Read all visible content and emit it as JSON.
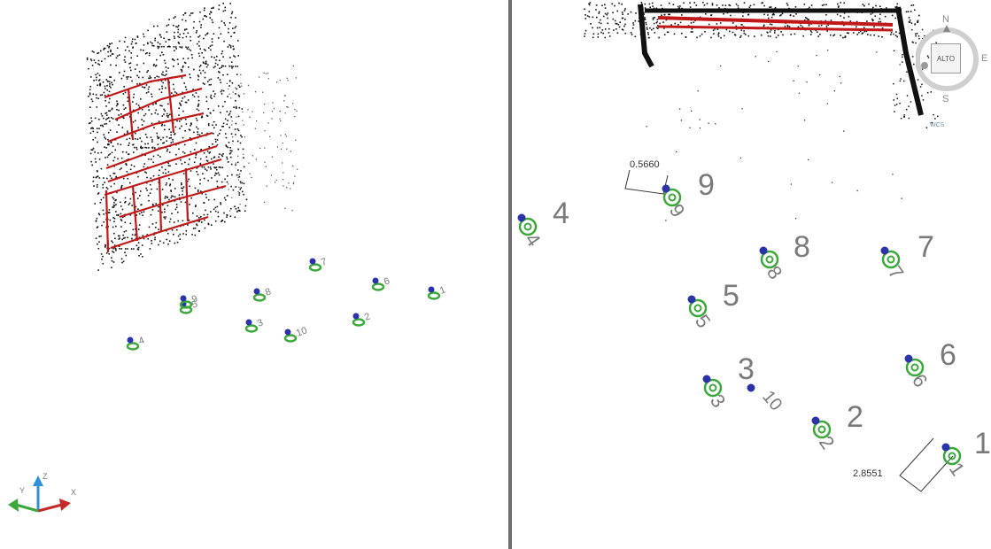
{
  "left_viewport": {
    "target_labels": [
      "1",
      "2",
      "3",
      "4",
      "5",
      "6",
      "7",
      "8",
      "9",
      "10"
    ],
    "ucs": {
      "x_label": "X",
      "y_label": "Y",
      "z_label": "Z"
    }
  },
  "right_viewport": {
    "targets": [
      {
        "id": "1",
        "label": "1"
      },
      {
        "id": "2",
        "label": "2"
      },
      {
        "id": "3",
        "label": "3"
      },
      {
        "id": "4",
        "label": "4"
      },
      {
        "id": "5",
        "label": "5"
      },
      {
        "id": "6",
        "label": "6"
      },
      {
        "id": "7",
        "label": "7"
      },
      {
        "id": "8",
        "label": "8"
      },
      {
        "id": "9",
        "label": "9"
      },
      {
        "id": "10",
        "label": "10"
      }
    ],
    "dimensions": [
      "0.5660",
      "2.8551"
    ],
    "viewcube": {
      "face": "ALTO",
      "north": "N",
      "south": "S",
      "east": "E",
      "ucs_menu": "WCS"
    }
  },
  "colors": {
    "marker_ring": "#3aa83a",
    "marker_dot": "#2b33a8",
    "pointcloud": "#111111",
    "survey_lines": "#c01818",
    "divider": "#6e6e6e"
  }
}
